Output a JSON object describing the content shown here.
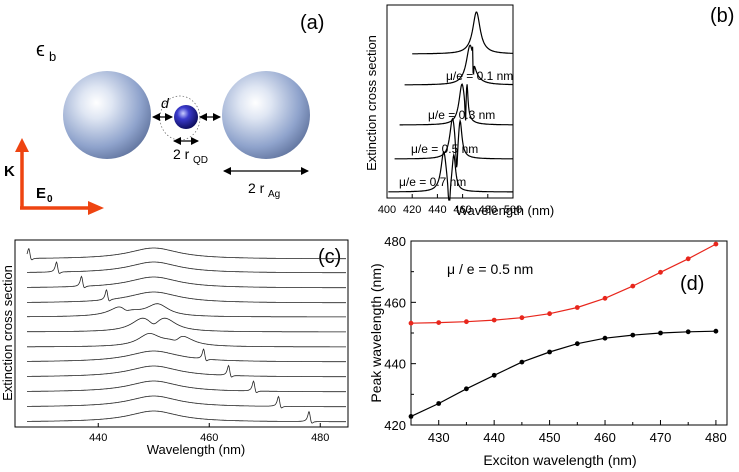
{
  "panel_a": {
    "label": "(a)",
    "medium": "ϵ",
    "medium_sub": "b",
    "gap": "d",
    "qd_radius_prefix": "2 r",
    "qd_radius_sub": "QD",
    "ag_radius_prefix": "2 r",
    "ag_radius_sub": "Ag",
    "k_label": "K",
    "e_label": "E",
    "e_sub": "0",
    "colors": {
      "arrow": "#ee4411",
      "sphere": "#8fa3cc",
      "qd": "#1a1a99"
    }
  },
  "chart_data": [
    {
      "id": "b",
      "type": "line",
      "panel_label": "(b)",
      "xlabel": "Wavelength (nm)",
      "ylabel": "Extinction cross section",
      "xlim": [
        400,
        500
      ],
      "xticks": [
        400,
        420,
        440,
        460,
        480,
        500
      ],
      "series": [
        {
          "name": "uncoupled",
          "label": "",
          "kind": "single",
          "peak": 471,
          "start": 420
        },
        {
          "name": "mu0.1",
          "label": "μ/e = 0.1  nm",
          "kind": "single_dip",
          "peak": 466,
          "dip": 468.5,
          "start": 414
        },
        {
          "name": "mu0.3",
          "label": "μ/e = 0.3  nm",
          "kind": "double",
          "peaks": [
            459.5,
            463.5
          ],
          "start": 410
        },
        {
          "name": "mu0.5",
          "label": "μ/e = 0.5  nm",
          "kind": "double",
          "peaks": [
            452,
            458
          ],
          "start": 406
        },
        {
          "name": "mu0.7",
          "label": "μ/e = 0.7  nm",
          "kind": "double",
          "peaks": [
            445,
            453
          ],
          "start": 401
        }
      ]
    },
    {
      "id": "c",
      "type": "line",
      "panel_label": "(c)",
      "xlabel": "Wavelength (nm)",
      "ylabel": "Extinction cross section",
      "xlim": [
        425,
        485
      ],
      "xticks": [
        440,
        460,
        480
      ],
      "plasmon_center": 450,
      "exciton_wavelengths": [
        427.5,
        432.5,
        437,
        441.5,
        445,
        450,
        454,
        459,
        463.5,
        468,
        472.5,
        478
      ]
    },
    {
      "id": "d",
      "type": "line",
      "panel_label": "(d)",
      "annotation": "μ / e = 0.5 nm",
      "xlabel": "Exciton wavelength  (nm)",
      "ylabel": "Peak wavelength  (nm)",
      "xlim": [
        425,
        482
      ],
      "ylim": [
        420,
        480
      ],
      "xticks": [
        430,
        440,
        450,
        460,
        470,
        480
      ],
      "yticks": [
        420,
        440,
        460,
        480
      ],
      "x": [
        425,
        430,
        435,
        440,
        445,
        450,
        455,
        460,
        465,
        470,
        475,
        480
      ],
      "series": [
        {
          "name": "upper branch",
          "color": "#e8261c",
          "values": [
            453.2,
            453.4,
            453.7,
            454.2,
            455.0,
            456.3,
            458.3,
            461.3,
            465.3,
            469.8,
            474.2,
            479.0
          ]
        },
        {
          "name": "lower branch",
          "color": "#000000",
          "values": [
            422.8,
            427.0,
            431.8,
            436.2,
            440.5,
            443.8,
            446.5,
            448.3,
            449.3,
            450.0,
            450.4,
            450.6
          ]
        }
      ]
    }
  ]
}
